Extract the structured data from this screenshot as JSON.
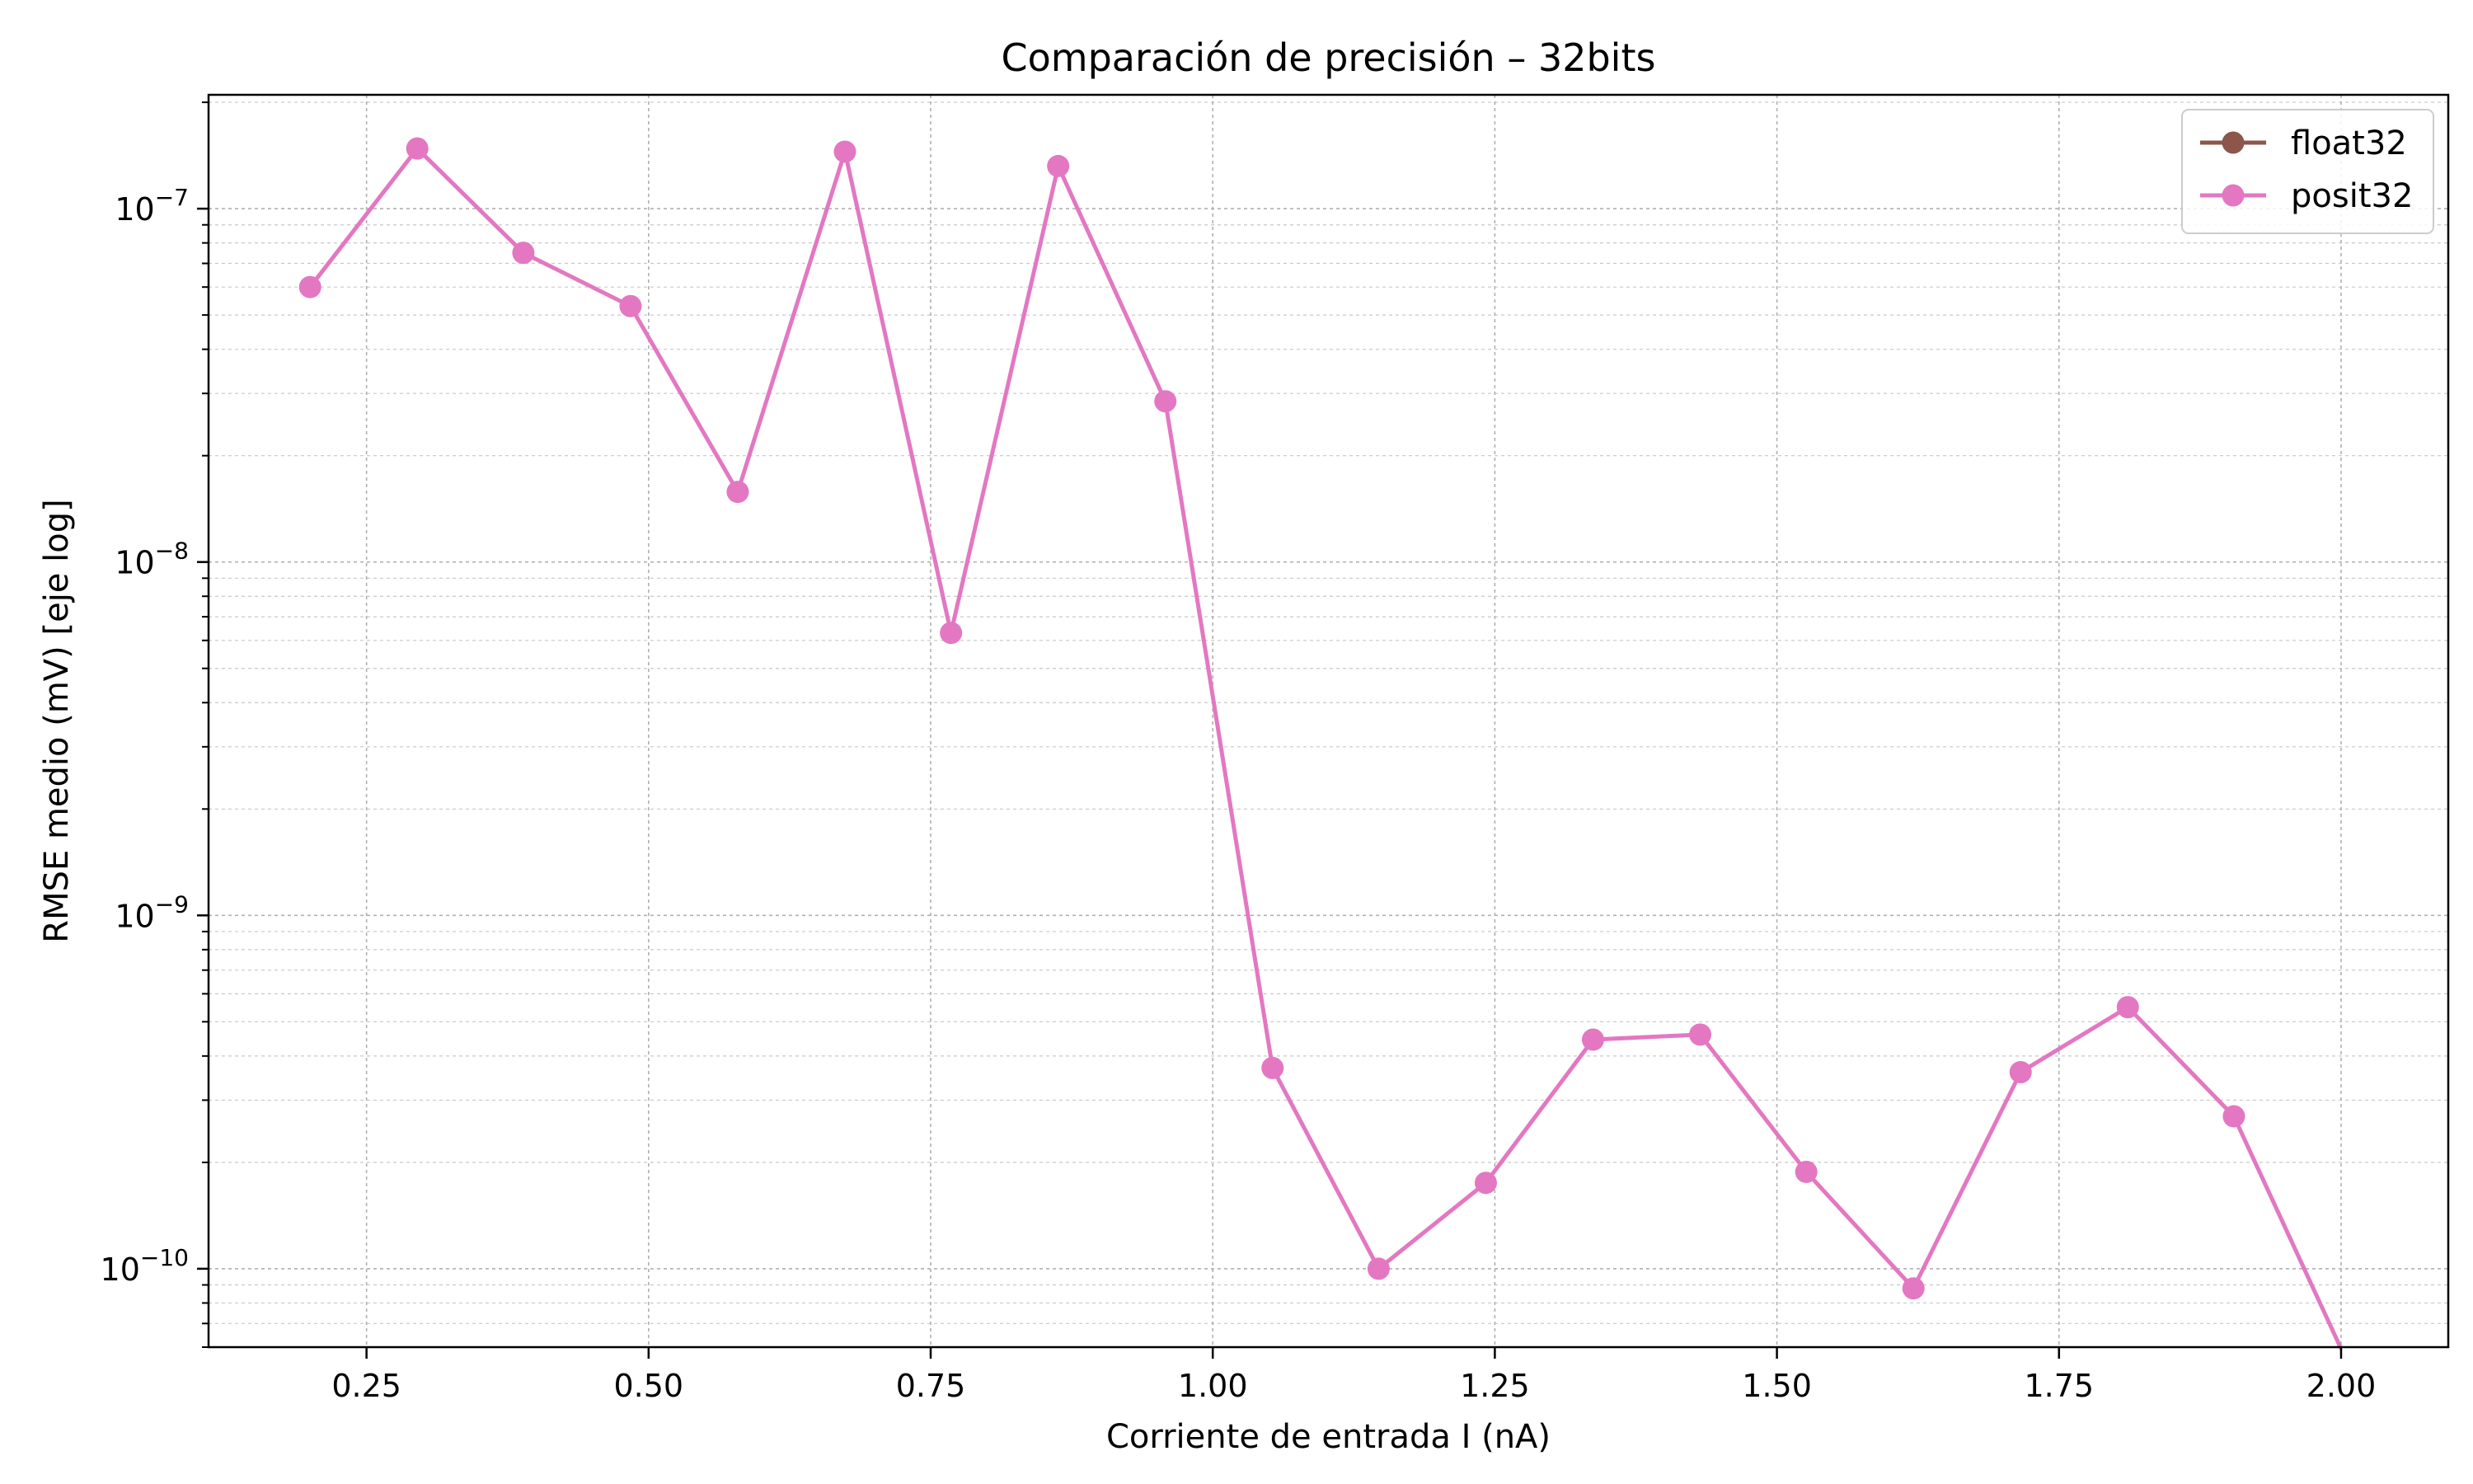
{
  "chart_data": {
    "type": "line",
    "title": "Comparación de precisión – 32bits",
    "xlabel": "Corriente de entrada I (nA)",
    "ylabel": "RMSE medio (mV) [eje log]",
    "y_scale": "log",
    "xlim": [
      0.11,
      2.095
    ],
    "ylim": [
      6e-11,
      2.1e-07
    ],
    "x_ticks": [
      0.25,
      0.5,
      0.75,
      1.0,
      1.25,
      1.5,
      1.75,
      2.0
    ],
    "x_tick_labels": [
      "0.25",
      "0.50",
      "0.75",
      "1.00",
      "1.25",
      "1.50",
      "1.75",
      "2.00"
    ],
    "y_ticks": [
      1e-10,
      1e-09,
      1e-08,
      1e-07
    ],
    "y_tick_labels": [
      {
        "base": "10",
        "exp": "−10"
      },
      {
        "base": "10",
        "exp": "−9"
      },
      {
        "base": "10",
        "exp": "−8"
      },
      {
        "base": "10",
        "exp": "−7"
      }
    ],
    "grid": true,
    "legend_position": "top-right",
    "x": [
      0.2,
      0.295,
      0.389,
      0.484,
      0.579,
      0.674,
      0.768,
      0.863,
      0.958,
      1.053,
      1.147,
      1.242,
      1.337,
      1.432,
      1.526,
      1.621,
      1.716,
      1.811,
      1.905,
      2.0
    ],
    "series": [
      {
        "name": "float32",
        "color": "#8c564b",
        "values": [
          null,
          null,
          null,
          null,
          null,
          null,
          null,
          null,
          null,
          null,
          null,
          null,
          null,
          null,
          null,
          null,
          null,
          null,
          null,
          null
        ]
      },
      {
        "name": "posit32",
        "color": "#e377c2",
        "values": [
          6e-08,
          1.48e-07,
          7.5e-08,
          5.3e-08,
          1.58e-08,
          1.45e-07,
          6.3e-09,
          1.32e-07,
          2.85e-08,
          3.7e-10,
          1e-10,
          1.75e-10,
          4.45e-10,
          4.6e-10,
          1.88e-10,
          8.8e-11,
          3.6e-10,
          5.5e-10,
          2.7e-10,
          0
        ]
      }
    ]
  }
}
